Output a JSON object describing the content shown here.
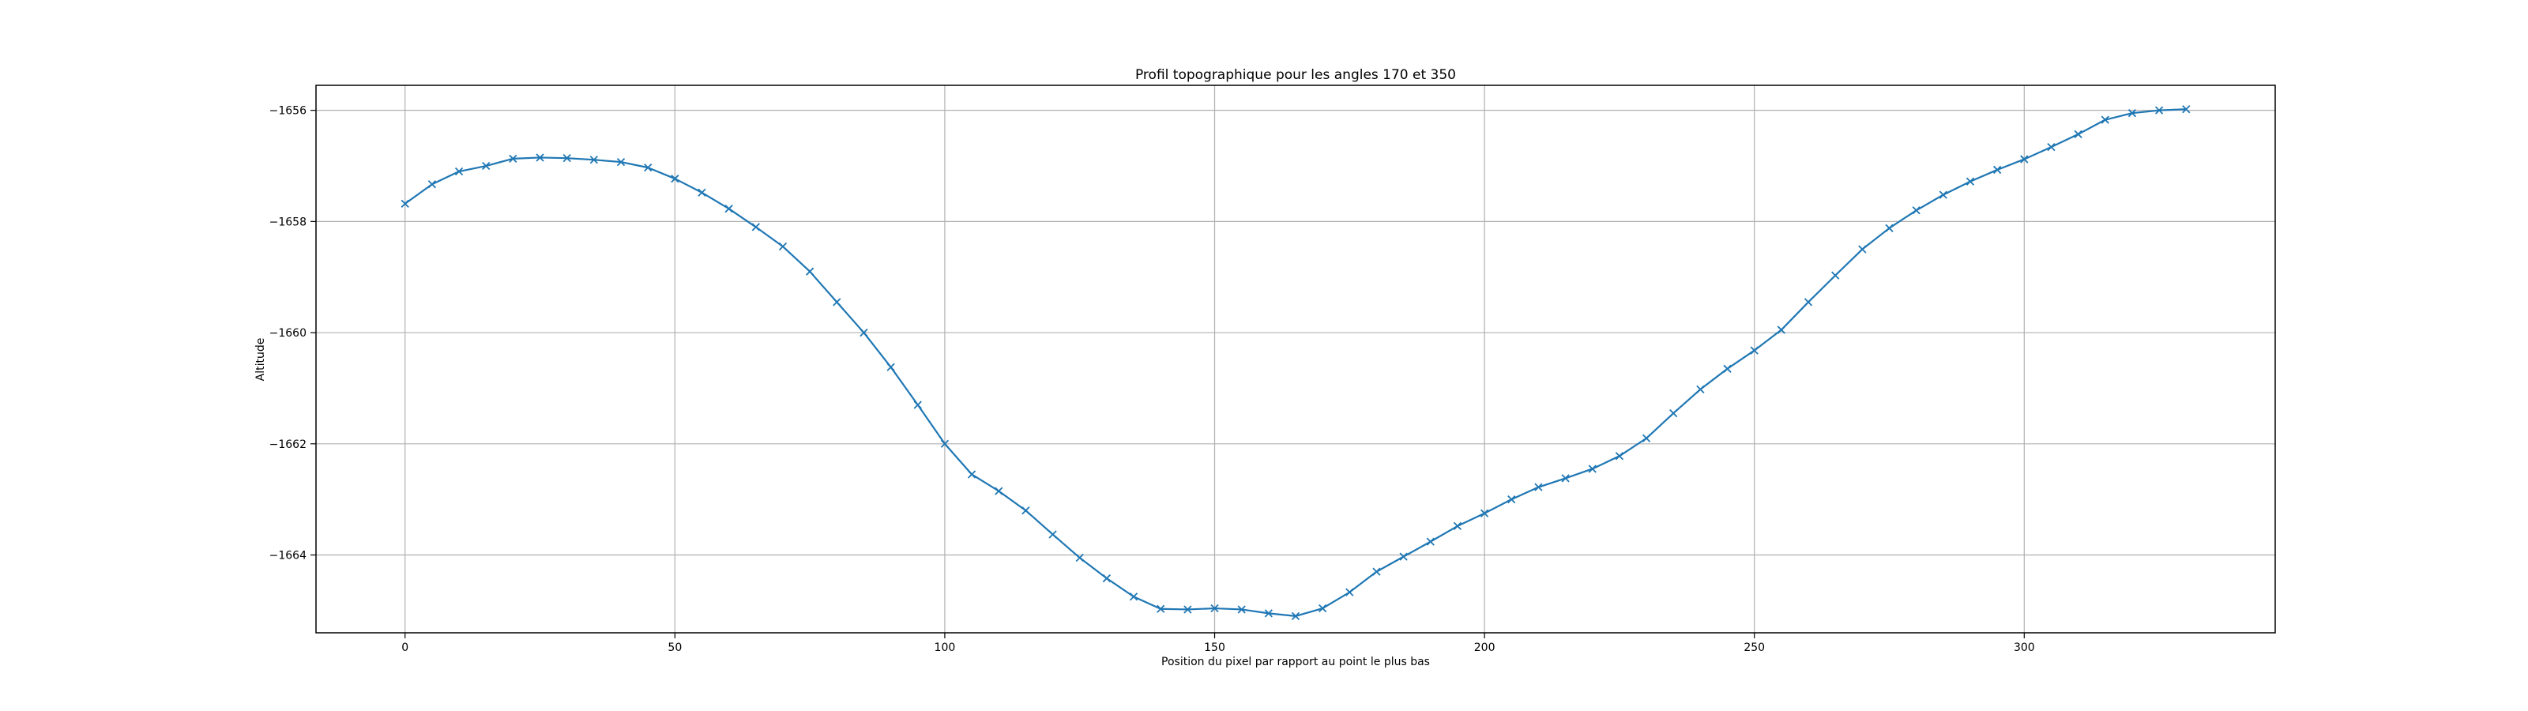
{
  "chart_data": {
    "type": "line",
    "title": "Profil topographique pour les angles 170 et 350",
    "xlabel": "Position du pixel par rapport au point le plus bas",
    "ylabel": "Altitude",
    "xlim": [
      -16.5,
      346.5
    ],
    "ylim": [
      -1665.4,
      -1655.55
    ],
    "grid": true,
    "marker": "x",
    "color": "#1f77b4",
    "x_ticks": [
      0,
      50,
      100,
      150,
      200,
      250,
      300
    ],
    "x_tick_labels": [
      "0",
      "50",
      "100",
      "150",
      "200",
      "250",
      "300"
    ],
    "y_ticks": [
      -1656,
      -1658,
      -1660,
      -1662,
      -1664
    ],
    "y_tick_labels": [
      "−1656",
      "−1658",
      "−1660",
      "−1662",
      "−1664"
    ],
    "series": [
      {
        "x": [
          0,
          5,
          10,
          15,
          20,
          25,
          30,
          35,
          40,
          45,
          50,
          55,
          60,
          65,
          70,
          75,
          80,
          85,
          90,
          95,
          100,
          105,
          110,
          115,
          120,
          125,
          130,
          135,
          140,
          145,
          150,
          155,
          160,
          165,
          170,
          175,
          180,
          185,
          190,
          195,
          200,
          205,
          210,
          215,
          220,
          225,
          230,
          235,
          240,
          245,
          250,
          255,
          260,
          265,
          270,
          275,
          280,
          285,
          290,
          295,
          300,
          305,
          310,
          315,
          320,
          325,
          330
        ],
        "y": [
          -1657.68,
          -1657.33,
          -1657.1,
          -1657.0,
          -1656.87,
          -1656.85,
          -1656.86,
          -1656.89,
          -1656.93,
          -1657.03,
          -1657.23,
          -1657.48,
          -1657.77,
          -1658.1,
          -1658.45,
          -1658.9,
          -1659.45,
          -1660.0,
          -1660.62,
          -1661.3,
          -1662.0,
          -1662.55,
          -1662.85,
          -1663.2,
          -1663.63,
          -1664.05,
          -1664.42,
          -1664.75,
          -1664.97,
          -1664.98,
          -1664.96,
          -1664.98,
          -1665.05,
          -1665.1,
          -1664.96,
          -1664.67,
          -1664.3,
          -1664.03,
          -1663.76,
          -1663.48,
          -1663.25,
          -1663.0,
          -1662.78,
          -1662.62,
          -1662.45,
          -1662.22,
          -1661.9,
          -1661.45,
          -1661.02,
          -1660.65,
          -1660.32,
          -1659.95,
          -1659.45,
          -1658.97,
          -1658.5,
          -1658.12,
          -1657.8,
          -1657.52,
          -1657.28,
          -1657.07,
          -1656.88,
          -1656.66,
          -1656.43,
          -1656.17,
          -1656.05,
          -1656.0,
          -1655.98
        ]
      }
    ]
  }
}
